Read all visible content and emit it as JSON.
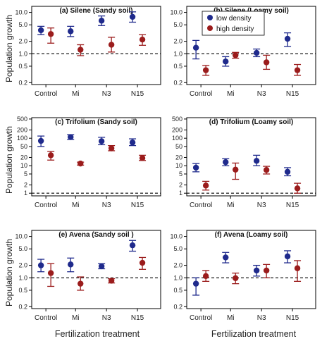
{
  "colors": {
    "low": "#1f2a8c",
    "high": "#9b1c1c"
  },
  "figure": {
    "xlabel": "Fertilization treatment",
    "ylabel": "Population growth"
  },
  "legend": {
    "items": [
      "low density",
      "high density"
    ]
  },
  "chart_data": [
    {
      "type": "scatter",
      "panel": "(a)",
      "title": "Silene (Sandy soil)",
      "categories": [
        "Control",
        "Mi",
        "N3",
        "N15"
      ],
      "yscale": "log",
      "ylim": [
        0.18,
        14
      ],
      "yticks": [
        0.2,
        0.5,
        1.0,
        2.0,
        5.0,
        10.0
      ],
      "ytick_labels": [
        "0.2",
        "0.5",
        "1.0",
        "2.0",
        "5.0",
        "10.0"
      ],
      "ref_line": 1.0,
      "series": [
        {
          "name": "low density",
          "values": [
            3.7,
            3.5,
            6.3,
            7.8
          ],
          "lower": [
            2.9,
            2.6,
            4.8,
            5.8
          ],
          "upper": [
            4.6,
            4.6,
            8.2,
            10.3
          ]
        },
        {
          "name": "high density",
          "values": [
            3.0,
            1.25,
            1.65,
            2.2
          ],
          "lower": [
            1.8,
            0.9,
            1.1,
            1.6
          ],
          "upper": [
            4.2,
            1.65,
            2.5,
            2.9
          ]
        }
      ]
    },
    {
      "type": "scatter",
      "panel": "(b)",
      "title": "Silene (Loamy soil)",
      "categories": [
        "Control",
        "Mi",
        "N3",
        "N15"
      ],
      "yscale": "log",
      "ylim": [
        0.18,
        14
      ],
      "yticks": [
        0.2,
        0.5,
        1.0,
        2.0,
        5.0,
        10.0
      ],
      "ytick_labels": [
        "0.2",
        "0.5",
        "1.0",
        "2.0",
        "5.0",
        "10.0"
      ],
      "ref_line": 1.0,
      "series": [
        {
          "name": "low density",
          "values": [
            1.4,
            0.65,
            1.05,
            2.3
          ],
          "lower": [
            0.75,
            0.5,
            0.85,
            1.5
          ],
          "upper": [
            2.1,
            0.85,
            1.3,
            3.2
          ]
        },
        {
          "name": "high density",
          "values": [
            0.4,
            0.92,
            0.62,
            0.4
          ],
          "lower": [
            0.3,
            0.78,
            0.42,
            0.3
          ],
          "upper": [
            0.52,
            1.08,
            0.92,
            0.55
          ]
        }
      ]
    },
    {
      "type": "scatter",
      "panel": "(c)",
      "title": "Trifolium (Sandy soil)",
      "categories": [
        "Control",
        "Mi",
        "N3",
        "N15"
      ],
      "yscale": "log",
      "ylim": [
        0.8,
        560
      ],
      "yticks": [
        1,
        2,
        5,
        10,
        20,
        50,
        100,
        200,
        500
      ],
      "ytick_labels": [
        "1",
        "2",
        "5",
        "10",
        "20",
        "50",
        "100",
        "200",
        "500"
      ],
      "ref_line": 1.0,
      "series": [
        {
          "name": "low density",
          "values": [
            80,
            110,
            78,
            70
          ],
          "lower": [
            50,
            90,
            58,
            54
          ],
          "upper": [
            120,
            135,
            108,
            95
          ]
        },
        {
          "name": "high density",
          "values": [
            24,
            12,
            43,
            19
          ],
          "lower": [
            16,
            10.5,
            35,
            15.5
          ],
          "upper": [
            33,
            13.5,
            54,
            24
          ]
        }
      ]
    },
    {
      "type": "scatter",
      "panel": "(d)",
      "title": "Trifolium (Loamy soil)",
      "categories": [
        "Control",
        "Mi",
        "N3",
        "N15"
      ],
      "yscale": "log",
      "ylim": [
        0.8,
        560
      ],
      "yticks": [
        1,
        2,
        5,
        10,
        20,
        50,
        100,
        200,
        500
      ],
      "ytick_labels": [
        "1",
        "2",
        "5",
        "10",
        "20",
        "50",
        "100",
        "200",
        "500"
      ],
      "ref_line": 1.0,
      "series": [
        {
          "name": "low density",
          "values": [
            8.5,
            13.5,
            15,
            6
          ],
          "lower": [
            6,
            10,
            10,
            4.3
          ],
          "upper": [
            12,
            18,
            24,
            8.5
          ]
        },
        {
          "name": "high density",
          "values": [
            1.9,
            7.2,
            7,
            1.5
          ],
          "lower": [
            1.3,
            3.2,
            5,
            1.0
          ],
          "upper": [
            2.7,
            12.5,
            9.5,
            2.3
          ]
        }
      ]
    },
    {
      "type": "scatter",
      "panel": "(e)",
      "title": "Avena (Sandy soil )",
      "categories": [
        "Control",
        "Mi",
        "N3",
        "N15"
      ],
      "yscale": "log",
      "ylim": [
        0.18,
        14
      ],
      "yticks": [
        0.2,
        0.5,
        1.0,
        2.0,
        5.0,
        10.0
      ],
      "ytick_labels": [
        "0.2",
        "0.5",
        "1.0",
        "2.0",
        "5.0",
        "10.0"
      ],
      "ref_line": 1.0,
      "series": [
        {
          "name": "low density",
          "values": [
            2.0,
            2.1,
            1.9,
            6.1
          ],
          "lower": [
            1.4,
            1.4,
            1.65,
            4.4
          ],
          "upper": [
            2.8,
            3.0,
            2.2,
            8.0
          ]
        },
        {
          "name": "high density",
          "values": [
            1.3,
            0.72,
            0.85,
            2.3
          ],
          "lower": [
            0.62,
            0.5,
            0.75,
            1.6
          ],
          "upper": [
            2.2,
            1.05,
            0.95,
            3.1
          ]
        }
      ]
    },
    {
      "type": "scatter",
      "panel": "(f)",
      "title": "Avena (Loamy soil)",
      "categories": [
        "Control",
        "Mi",
        "N3",
        "N15"
      ],
      "yscale": "log",
      "ylim": [
        0.18,
        14
      ],
      "yticks": [
        0.2,
        0.5,
        1.0,
        2.0,
        5.0,
        10.0
      ],
      "ytick_labels": [
        "0.2",
        "0.5",
        "1.0",
        "2.0",
        "5.0",
        "10.0"
      ],
      "ref_line": 1.0,
      "series": [
        {
          "name": "low density",
          "values": [
            0.72,
            3.1,
            1.5,
            3.3
          ],
          "lower": [
            0.38,
            2.3,
            1.1,
            2.3
          ],
          "upper": [
            1.0,
            4.1,
            2.0,
            4.5
          ]
        },
        {
          "name": "high density",
          "values": [
            1.1,
            0.98,
            1.5,
            1.7
          ],
          "lower": [
            0.82,
            0.72,
            1.0,
            0.82
          ],
          "upper": [
            1.5,
            1.3,
            2.1,
            2.6
          ]
        }
      ]
    }
  ]
}
